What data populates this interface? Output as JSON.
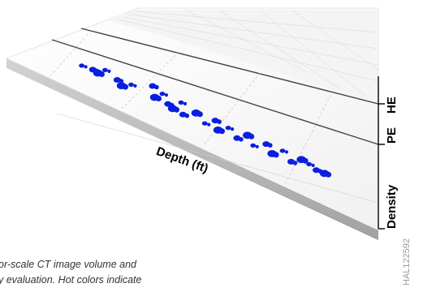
{
  "figure": {
    "depth_axis_label": "Depth (ft)",
    "figure_id": "HAL122592",
    "caption_lines": [
      "or-scale CT image volume and",
      "y evaluation. Hot colors indicate"
    ],
    "marker_color": "#0a1ee0"
  },
  "chart_data": {
    "type": "scatter",
    "title": "",
    "xlabel": "Depth (ft)",
    "tracks": [
      "HE",
      "PE",
      "Density"
    ],
    "series": [
      {
        "name": "",
        "note": "blue high-density points on the core CT surface, relative depth 0-100 across the panel",
        "x": [
          4,
          8,
          10,
          12,
          17,
          19,
          22,
          29,
          31,
          33,
          36,
          38,
          40,
          42,
          46,
          50,
          53,
          55,
          58,
          62,
          65,
          68,
          72,
          75,
          78,
          82,
          85,
          88,
          91,
          94
        ],
        "y": [
          20,
          22,
          25,
          18,
          28,
          35,
          30,
          24,
          40,
          32,
          45,
          50,
          38,
          55,
          48,
          60,
          52,
          65,
          58,
          70,
          62,
          75,
          68,
          80,
          72,
          85,
          78,
          82,
          88,
          90
        ]
      }
    ]
  }
}
